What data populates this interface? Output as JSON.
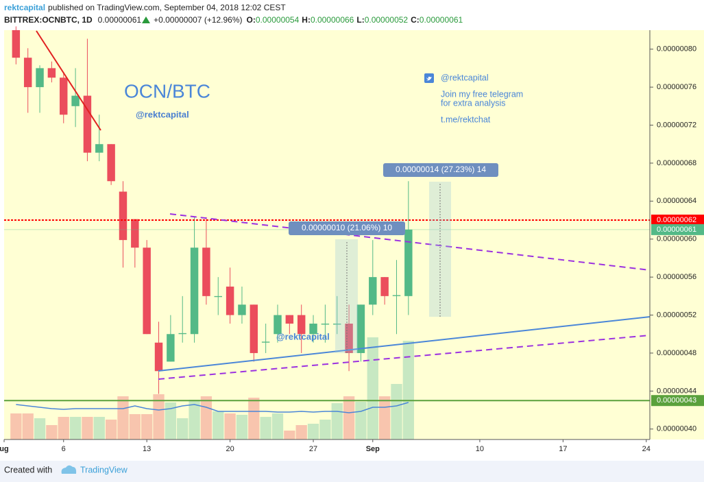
{
  "header": {
    "author": "rektcapital",
    "published": "published on TradingView.com, September 04, 2018 12:02 CEST",
    "symbol": "BITTREX:OCNBTC, 1D",
    "last": "0.00000061",
    "change": "+0.00000007 (+12.96%)",
    "open_label": "O:",
    "open": "0.00000054",
    "high_label": "H:",
    "high": "0.00000066",
    "low_label": "L:",
    "low": "0.00000052",
    "close_label": "C:",
    "close": "0.00000061"
  },
  "chart_data": {
    "type": "candlestick",
    "title": "OCN/BTC",
    "subtitle": "@rektcapital",
    "watermark": "@rektcapital",
    "notes": [
      "@rektcapital",
      "Join my free telegram",
      "for extra analysis",
      "t.me/rektchat"
    ],
    "measure_labels": [
      "0.00000010 (21.06%) 10",
      "0.00000014 (27.23%) 14"
    ],
    "x": [
      2,
      3,
      4,
      5,
      6,
      7,
      8,
      9,
      10,
      11,
      12,
      13,
      14,
      15,
      16,
      17,
      18,
      19,
      20,
      21,
      22,
      23,
      24,
      25,
      26,
      27,
      28,
      29,
      30,
      31,
      32,
      33,
      34,
      35
    ],
    "open": [
      8.2e-07,
      7.91e-07,
      7.6e-07,
      7.8e-07,
      7.7e-07,
      7.4e-07,
      7.51e-07,
      6.91e-07,
      7e-07,
      6.5e-07,
      6.21e-07,
      5.91e-07,
      4.91e-07,
      4.71e-07,
      5e-07,
      5e-07,
      5.91e-07,
      5.39e-07,
      5.5e-07,
      5.2e-07,
      5.31e-07,
      4.91e-07,
      5e-07,
      5.2e-07,
      5.2e-07,
      5e-07,
      5.1e-07,
      5.1e-07,
      5.11e-07,
      4.8e-07,
      5.31e-07,
      5.6e-07,
      5.4e-07,
      5.4e-07
    ],
    "high": [
      8.24e-07,
      8.01e-07,
      7.83e-07,
      7.87e-07,
      7.76e-07,
      7.8e-07,
      8.11e-07,
      7.31e-07,
      7e-07,
      6.61e-07,
      6.21e-07,
      5.99e-07,
      5.13e-07,
      5.2e-07,
      5.4e-07,
      6.23e-07,
      6.23e-07,
      5.6e-07,
      5.7e-07,
      5.5e-07,
      5.31e-07,
      5.11e-07,
      5.31e-07,
      5.2e-07,
      5.31e-07,
      5.2e-07,
      5.31e-07,
      5.4e-07,
      5.31e-07,
      5.31e-07,
      5.99e-07,
      5.6e-07,
      5.78e-07,
      6.61e-07
    ],
    "low": [
      7.84e-07,
      7.33e-07,
      7.33e-07,
      7.65e-07,
      7.22e-07,
      7.18e-07,
      6.82e-07,
      6.82e-07,
      6.57e-07,
      5.7e-07,
      5.7e-07,
      5e-07,
      4.37e-07,
      4.71e-07,
      4.91e-07,
      4.91e-07,
      5.31e-07,
      5.2e-07,
      5.11e-07,
      5.11e-07,
      4.71e-07,
      4.8e-07,
      4.91e-07,
      5e-07,
      4.8e-07,
      4.91e-07,
      4.91e-07,
      5e-07,
      4.61e-07,
      4.71e-07,
      5.2e-07,
      5.31e-07,
      5e-07,
      5.2e-07
    ],
    "close": [
      7.91e-07,
      7.6e-07,
      7.8e-07,
      7.7e-07,
      7.31e-07,
      7.51e-07,
      6.91e-07,
      7e-07,
      6.61e-07,
      5.99e-07,
      5.91e-07,
      5e-07,
      4.61e-07,
      5e-07,
      5.01e-07,
      5.91e-07,
      5.4e-07,
      5.4e-07,
      5.2e-07,
      5.31e-07,
      4.8e-07,
      4.92e-07,
      5.2e-07,
      5.11e-07,
      5e-07,
      5.11e-07,
      5.11e-07,
      5.11e-07,
      4.8e-07,
      5.31e-07,
      5.6e-07,
      5.4e-07,
      5.41e-07,
      6.1e-07
    ],
    "volume": [
      38,
      38,
      31,
      21,
      33,
      33,
      33,
      33,
      29,
      63,
      37,
      37,
      66,
      54,
      31,
      58,
      63,
      41,
      38,
      36,
      61,
      33,
      38,
      13,
      21,
      23,
      29,
      53,
      63,
      55,
      149,
      63,
      81,
      144
    ],
    "volume_ma": [
      51,
      49,
      47,
      45,
      44,
      45,
      45,
      45,
      45,
      45,
      49,
      45,
      43,
      45,
      49,
      51,
      47,
      41,
      41,
      41,
      41,
      41,
      40,
      40,
      41,
      40,
      41,
      41,
      39,
      41,
      47,
      47,
      49,
      54
    ],
    "up_color": "#53b987",
    "down_color": "#eb4d5c",
    "volume_up_color": "#c7e8c2",
    "volume_down_color": "#f8c5ae",
    "ma_color": "#4a86d8",
    "xlim": [
      1,
      55.3
    ],
    "xticks": [
      {
        "value": 1,
        "label": "ug"
      },
      6,
      13,
      20,
      27,
      {
        "value": 32,
        "label": "Sep"
      },
      {
        "value": 41,
        "label": "10"
      },
      {
        "value": 48,
        "label": "17"
      },
      {
        "value": 55,
        "label": "24"
      }
    ],
    "ylim": [
      3.89e-07,
      8.2e-07
    ],
    "yticks": [
      {
        "value": 4e-07,
        "label": "0.00000040"
      },
      {
        "value": 4.4e-07,
        "label": "0.00000044"
      },
      {
        "value": 4.8e-07,
        "label": "0.00000048"
      },
      {
        "value": 5.2e-07,
        "label": "0.00000052"
      },
      {
        "value": 5.6e-07,
        "label": "0.00000056"
      },
      {
        "value": 6e-07,
        "label": "0.00000060"
      },
      {
        "value": 6.4e-07,
        "label": "0.00000064"
      },
      {
        "value": 6.8e-07,
        "label": "0.00000068"
      },
      {
        "value": 7.2e-07,
        "label": "0.00000072"
      },
      {
        "value": 7.6e-07,
        "label": "0.00000076"
      },
      {
        "value": 8e-07,
        "label": "0.00000080"
      }
    ],
    "levels": [
      {
        "value": 6.2e-07,
        "label": "0.00000062",
        "color": "#ff0000",
        "style": "dashed"
      },
      {
        "value": 6.1e-07,
        "label": "0.00000061",
        "color": "#53b987",
        "style": "faint"
      },
      {
        "value": 4.3e-07,
        "label": "0.00000043",
        "color": "#5aa13c",
        "style": "solid"
      }
    ]
  },
  "footer": {
    "created": "Created with",
    "brand": "TradingView"
  }
}
